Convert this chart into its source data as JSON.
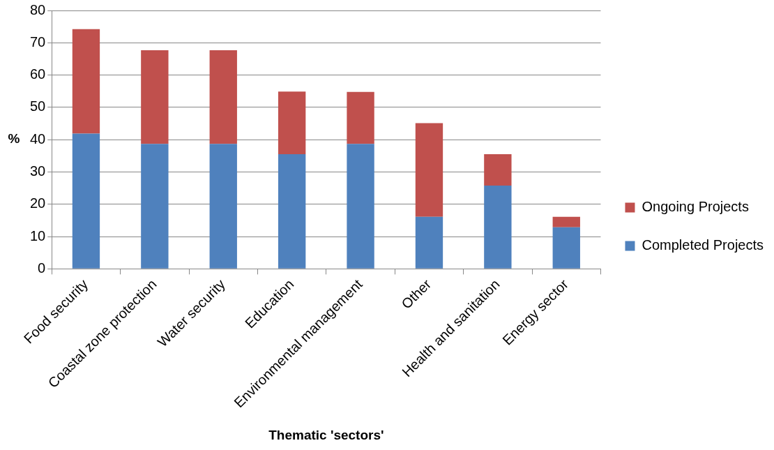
{
  "chart_data": {
    "type": "bar",
    "stacked": true,
    "xlabel": "Thematic 'sectors'",
    "ylabel": "%",
    "categories": [
      "Food security",
      "Coastal zone protection",
      "Water security",
      "Education",
      "Environmental management",
      "Other",
      "Health and sanitation",
      "Energy sector"
    ],
    "series": [
      {
        "name": "Completed Projects",
        "color": "#4f81bd",
        "values": [
          41.9,
          38.7,
          38.7,
          35.5,
          38.7,
          16.1,
          25.8,
          12.9
        ]
      },
      {
        "name": "Ongoing Projects",
        "color": "#c0504d",
        "values": [
          32.3,
          29.0,
          29.0,
          19.4,
          16.1,
          29.0,
          9.7,
          3.2
        ]
      }
    ],
    "ylim": [
      0,
      80
    ],
    "yticks": [
      0,
      10,
      20,
      30,
      40,
      50,
      60,
      70,
      80
    ],
    "grid": "y",
    "legend": "right"
  }
}
